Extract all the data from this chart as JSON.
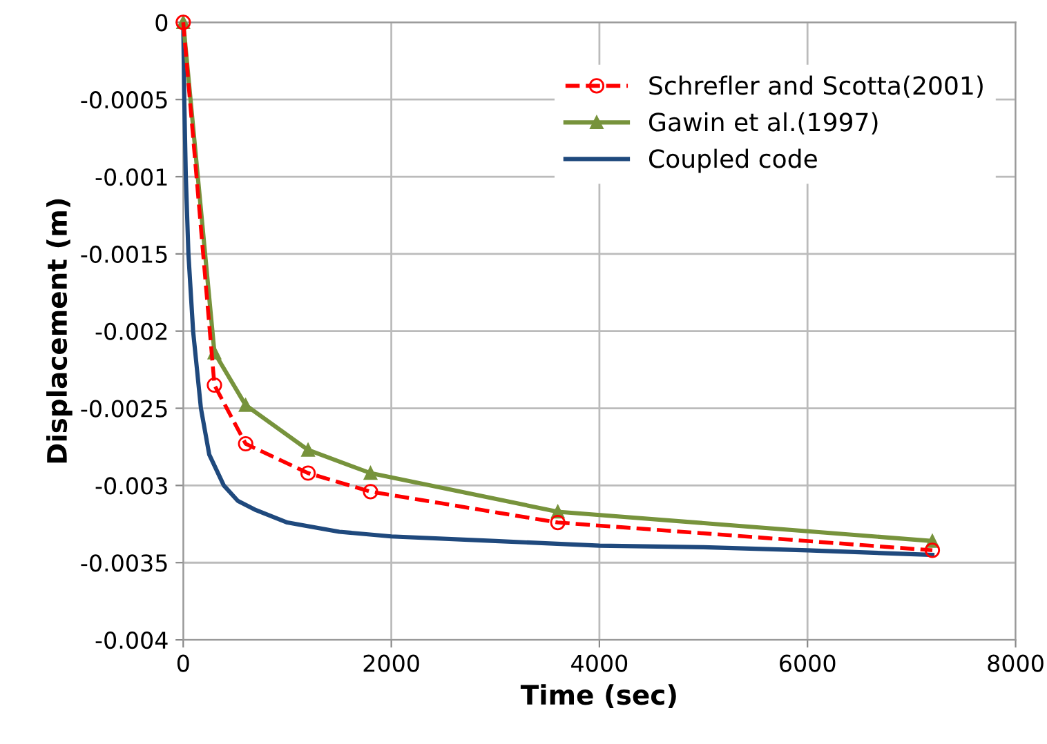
{
  "chart_data": {
    "type": "line",
    "xlabel": "Time (sec)",
    "ylabel": "Displacement (m)",
    "xlim": [
      0,
      8000
    ],
    "xticks": [
      0,
      2000,
      4000,
      6000,
      8000
    ],
    "ylim": [
      -0.004,
      0
    ],
    "yticks": [
      -0.004,
      -0.0035,
      -0.003,
      -0.0025,
      -0.002,
      -0.0015,
      -0.001,
      -0.0005,
      0
    ],
    "grid": true,
    "legend": "top right",
    "series": [
      {
        "name": "Schrefler and Scotta(2001)",
        "color": "#ff0000",
        "marker": "circle",
        "line_style": "dashed",
        "x": [
          0,
          300,
          600,
          1200,
          1800,
          3600,
          7200
        ],
        "values": [
          0,
          -0.00235,
          -0.00273,
          -0.00292,
          -0.00304,
          -0.00324,
          -0.00342
        ]
      },
      {
        "name": "Gawin et al.(1997)",
        "color": "#77933c",
        "marker": "triangle",
        "line_style": "solid",
        "x": [
          0,
          300,
          600,
          1200,
          1800,
          3600,
          7200
        ],
        "values": [
          0,
          -0.00214,
          -0.00248,
          -0.00277,
          -0.00292,
          -0.00317,
          -0.00336
        ]
      },
      {
        "name": "Coupled code",
        "color": "#1f497d",
        "marker": "none",
        "line_style": "solid",
        "x": [
          0,
          10,
          25,
          50,
          95,
          170,
          250,
          390,
          525,
          700,
          1000,
          1500,
          2000,
          3000,
          4000,
          5000,
          6000,
          7200
        ],
        "values": [
          0,
          -0.0005,
          -0.001,
          -0.0015,
          -0.002,
          -0.0025,
          -0.0028,
          -0.003,
          -0.0031,
          -0.00316,
          -0.00324,
          -0.0033,
          -0.00333,
          -0.00336,
          -0.00339,
          -0.0034,
          -0.00342,
          -0.00345
        ]
      }
    ]
  }
}
